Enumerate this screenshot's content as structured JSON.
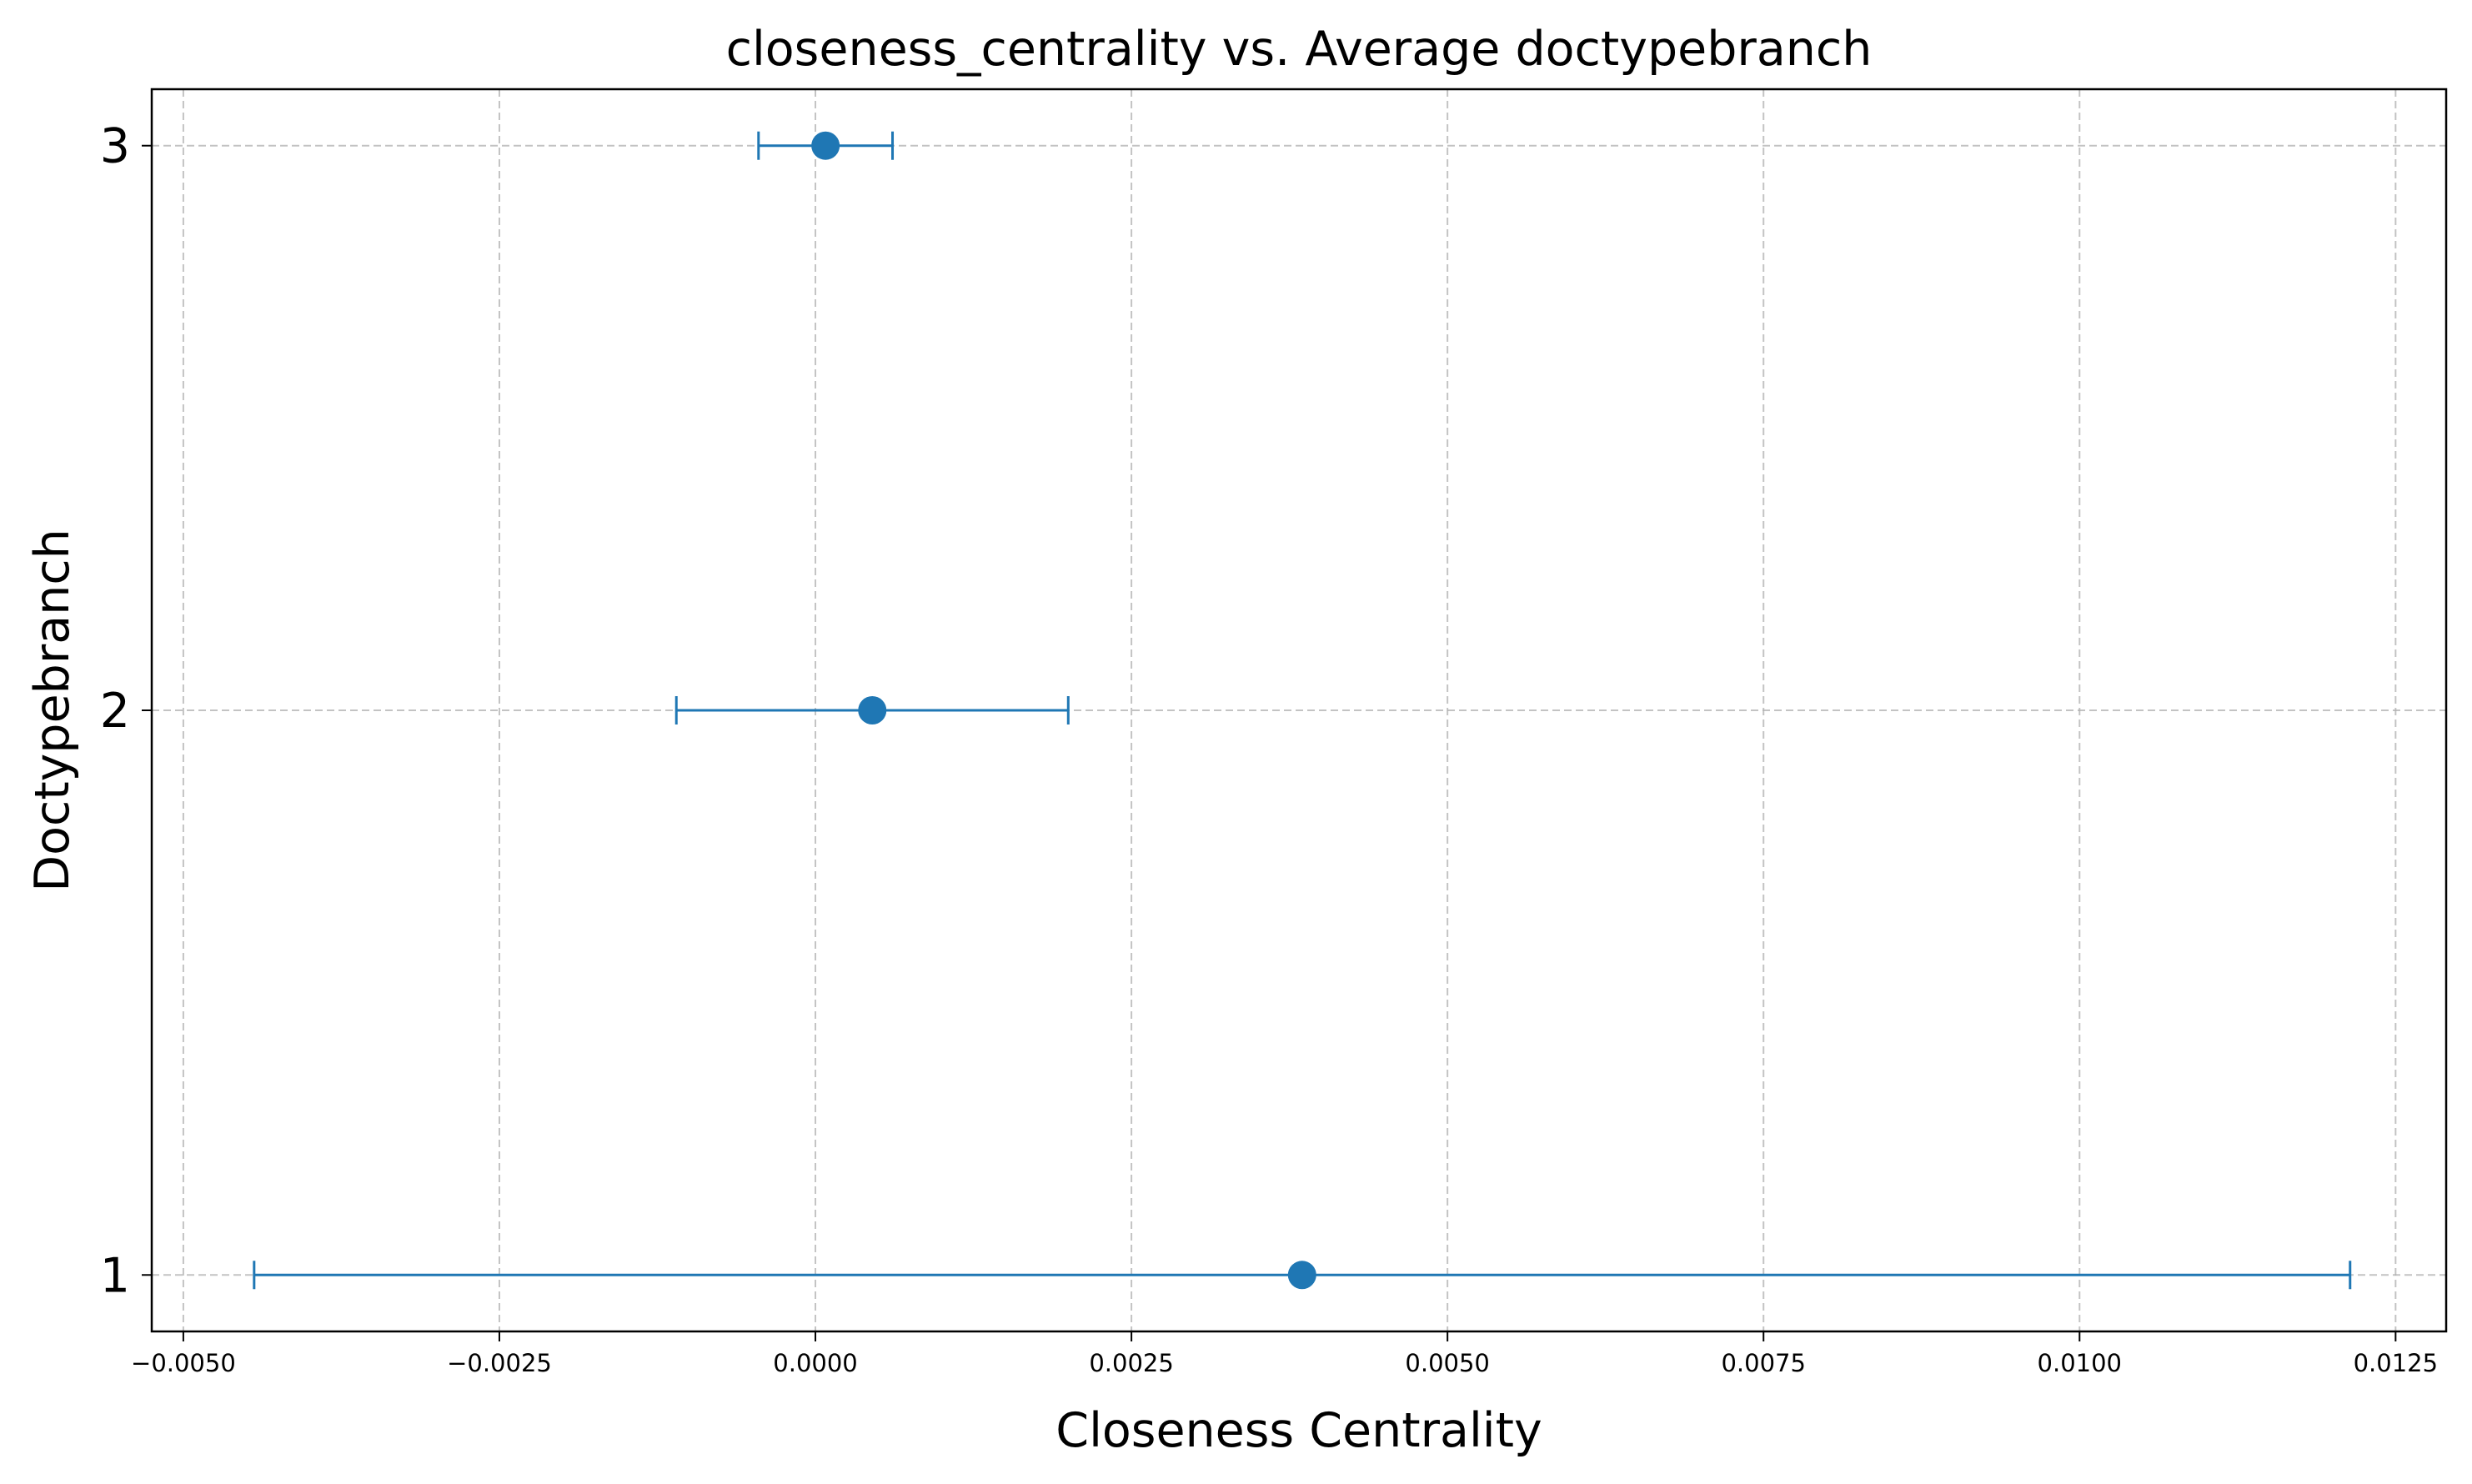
{
  "chart_data": {
    "type": "scatter",
    "title": "closeness_centrality vs. Average doctypebranch",
    "xlabel": "Closeness Centrality",
    "ylabel": "Doctypebranch",
    "xlim": [
      -0.00525,
      0.0129
    ],
    "ylim": [
      0.9,
      3.1
    ],
    "x_ticks": [
      -0.005,
      -0.0025,
      0.0,
      0.0025,
      0.005,
      0.0075,
      0.01,
      0.0125
    ],
    "x_tick_labels": [
      "−0.0050",
      "−0.0025",
      "0.0000",
      "0.0025",
      "0.0050",
      "0.0075",
      "0.0100",
      "0.0125"
    ],
    "y_ticks": [
      1,
      2,
      3
    ],
    "y_tick_labels": [
      "1",
      "2",
      "3"
    ],
    "grid": true,
    "color": "#1f77b4",
    "points": [
      {
        "y": 1,
        "x": 0.00385,
        "xerr": 0.00829
      },
      {
        "y": 2,
        "x": 0.00045,
        "xerr": 0.00155
      },
      {
        "y": 3,
        "x": 8e-05,
        "xerr": 0.00053
      }
    ]
  }
}
